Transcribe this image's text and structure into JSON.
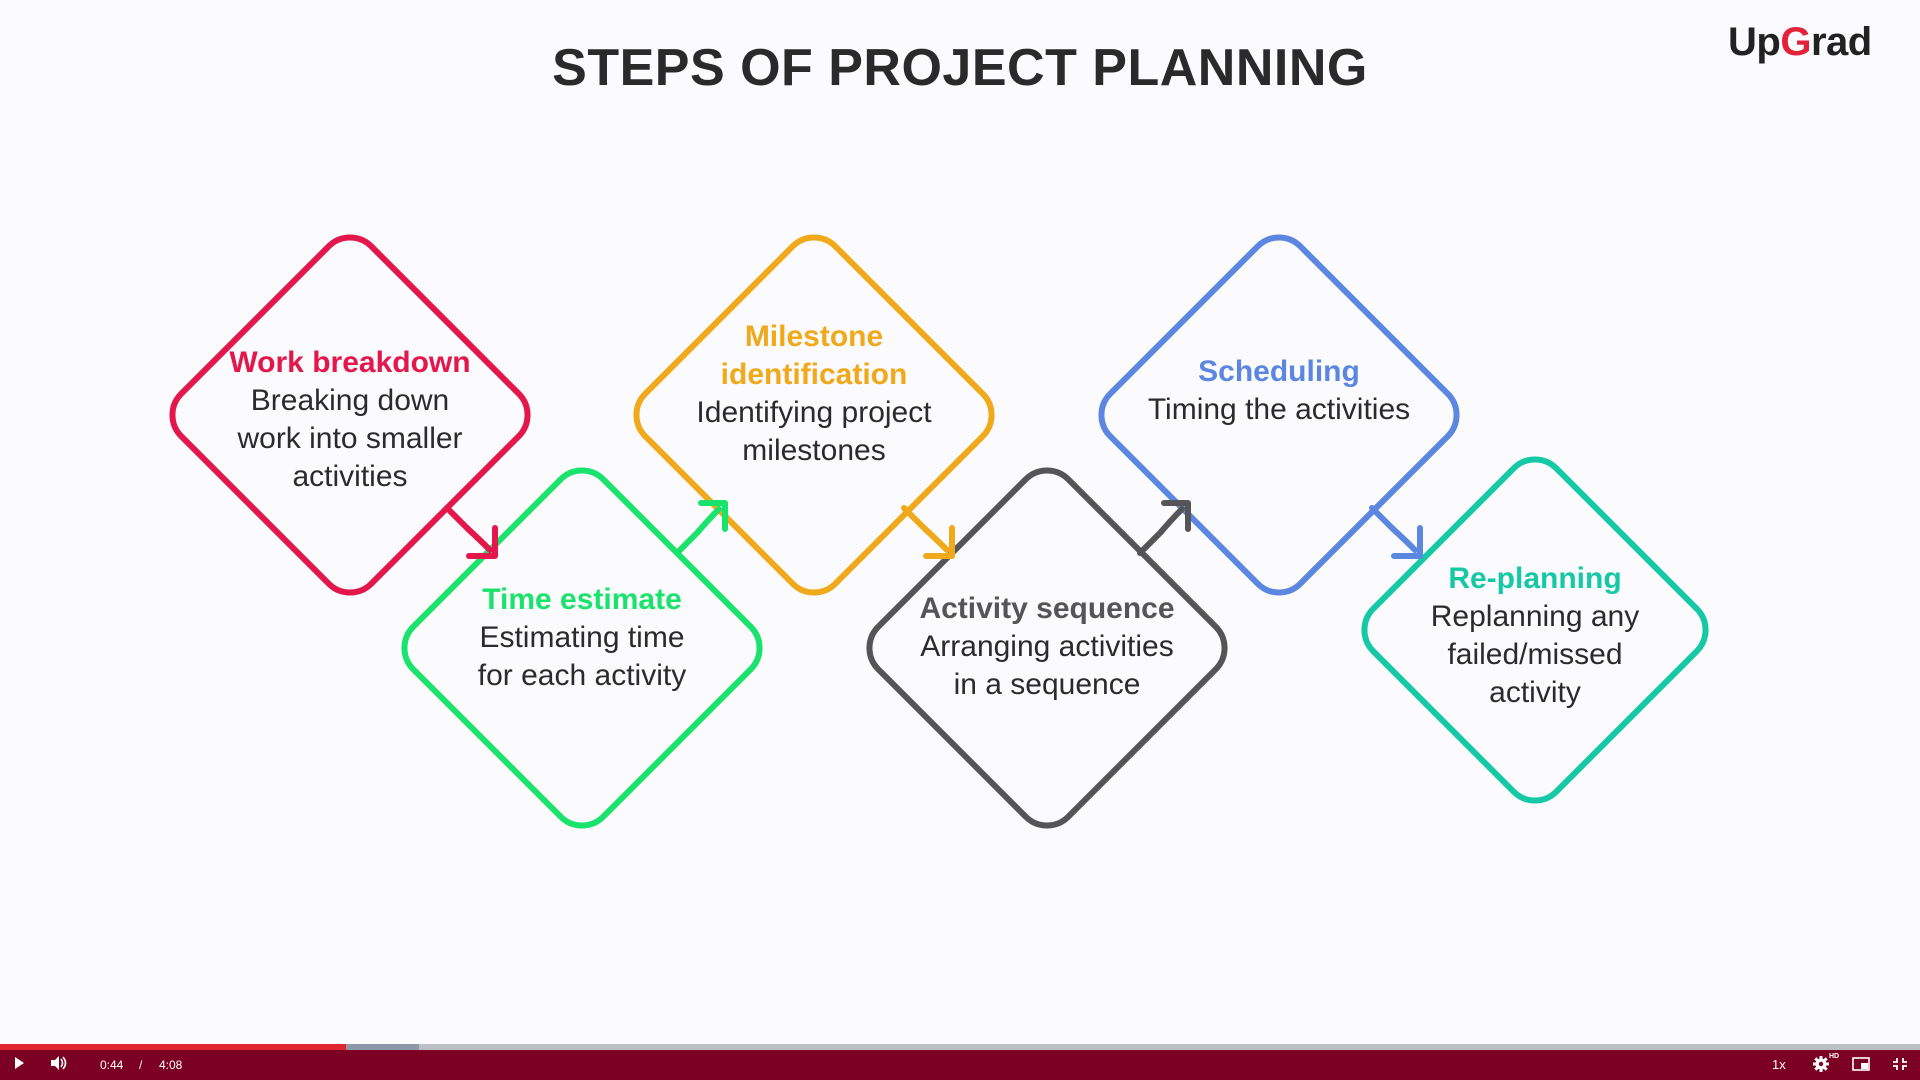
{
  "slide": {
    "title": "STEPS OF PROJECT PLANNING",
    "logo": {
      "part1": "Up",
      "part2": "G",
      "part3": "rad",
      "accent": "#e3213a"
    }
  },
  "steps": [
    {
      "title": "Work breakdown",
      "lines": [
        "Breaking down",
        "work into smaller",
        "activities"
      ],
      "color": "#e3174b"
    },
    {
      "title": "Time estimate",
      "lines": [
        "Estimating time",
        "for each activity"
      ],
      "color": "#19e36d"
    },
    {
      "title": "Milestone",
      "title2": "identification",
      "lines": [
        "Identifying project",
        "milestones"
      ],
      "color": "#f0a91b"
    },
    {
      "title": "Activity sequence",
      "lines": [
        "Arranging activities",
        "in a sequence"
      ],
      "color": "#555558"
    },
    {
      "title": "Scheduling",
      "lines": [
        "Timing the activities"
      ],
      "color": "#5b87e0"
    },
    {
      "title": "Re-planning",
      "lines": [
        "Replanning any",
        "failed/missed",
        "activity"
      ],
      "color": "#16c9a6"
    }
  ],
  "player": {
    "current_time": "0:44",
    "separator": "/",
    "duration": "4:08",
    "speed": "1x",
    "quality_badge": "HD",
    "progress_fraction": 0.18,
    "buffered_fraction": 0.218,
    "bar_color": "#7b0024",
    "played_color": "#e0262f"
  },
  "icons": {
    "play": "play-icon",
    "volume": "volume-icon",
    "settings": "gear-icon",
    "pip": "picture-in-picture-icon",
    "fullscreen": "exit-fullscreen-icon"
  }
}
